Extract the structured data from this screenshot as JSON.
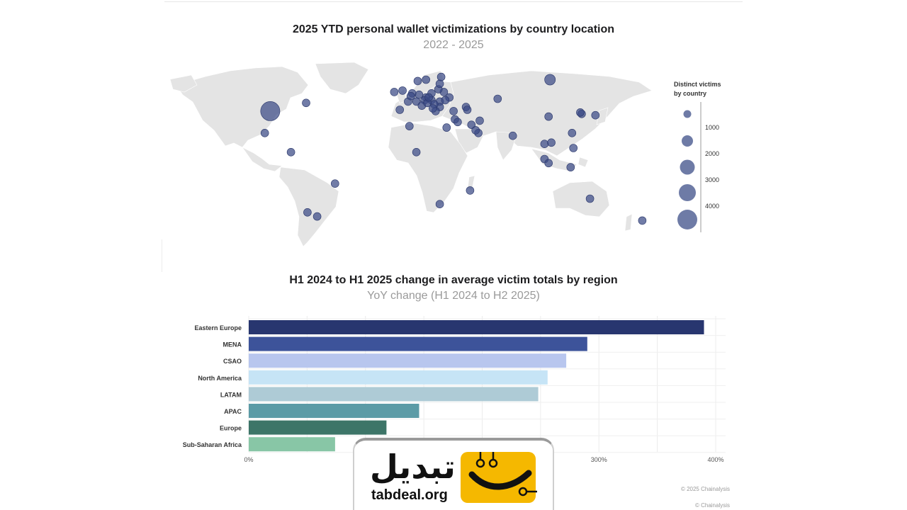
{
  "chart_data": [
    {
      "type": "scatter",
      "title": "2025 YTD personal wallet victimizations by country location",
      "subtitle": "2022 - 2025",
      "legend": {
        "title_line1": "Distinct victims",
        "title_line2": "by country",
        "ticks": [
          "1000",
          "2000",
          "3000",
          "4000"
        ],
        "placement": "right"
      },
      "points": [
        {
          "lon": -98,
          "lat": 39,
          "v": 3500
        },
        {
          "lon": -72,
          "lat": 45,
          "v": 300
        },
        {
          "lon": -102,
          "lat": 23,
          "v": 350
        },
        {
          "lon": -83,
          "lat": 9,
          "v": 300
        },
        {
          "lon": -51,
          "lat": -14,
          "v": 300
        },
        {
          "lon": -71,
          "lat": -35,
          "v": 300
        },
        {
          "lon": -64,
          "lat": -38,
          "v": 300
        },
        {
          "lon": 105,
          "lat": 62,
          "v": 1100
        },
        {
          "lon": 104,
          "lat": 35,
          "v": 250
        },
        {
          "lon": 138,
          "lat": 36,
          "v": 300
        },
        {
          "lon": 128,
          "lat": 37,
          "v": 300
        },
        {
          "lon": 127,
          "lat": 38,
          "v": 350
        },
        {
          "lon": 78,
          "lat": 21,
          "v": 300
        },
        {
          "lon": 121,
          "lat": 23,
          "v": 250
        },
        {
          "lon": 101,
          "lat": 15,
          "v": 300
        },
        {
          "lon": 106,
          "lat": 16,
          "v": 300
        },
        {
          "lon": 122,
          "lat": 12,
          "v": 300
        },
        {
          "lon": 101,
          "lat": 4,
          "v": 300
        },
        {
          "lon": 104,
          "lat": 1,
          "v": 300
        },
        {
          "lon": 120,
          "lat": -2,
          "v": 300
        },
        {
          "lon": 134,
          "lat": -25,
          "v": 300
        },
        {
          "lon": 172,
          "lat": -41,
          "v": 300
        },
        {
          "lon": 53,
          "lat": 23,
          "v": 300
        },
        {
          "lon": 48,
          "lat": 29,
          "v": 250
        },
        {
          "lon": 51,
          "lat": 25,
          "v": 250
        },
        {
          "lon": 54,
          "lat": 32,
          "v": 250
        },
        {
          "lon": 35,
          "lat": 39,
          "v": 300
        },
        {
          "lon": 30,
          "lat": 27,
          "v": 300
        },
        {
          "lon": 3,
          "lat": 28,
          "v": 300
        },
        {
          "lon": 8,
          "lat": 9,
          "v": 300
        },
        {
          "lon": 25,
          "lat": -29,
          "v": 300
        },
        {
          "lon": 47,
          "lat": -19,
          "v": 300
        },
        {
          "lon": 36,
          "lat": 33,
          "v": 300
        },
        {
          "lon": 38,
          "lat": 31,
          "v": 300
        },
        {
          "lon": 67,
          "lat": 48,
          "v": 300
        },
        {
          "lon": 44,
          "lat": 42,
          "v": 300
        },
        {
          "lon": 45,
          "lat": 40,
          "v": 300
        },
        {
          "lon": 32,
          "lat": 49,
          "v": 350
        },
        {
          "lon": 28,
          "lat": 53,
          "v": 300
        },
        {
          "lon": 24,
          "lat": 55,
          "v": 300
        },
        {
          "lon": 25,
          "lat": 59,
          "v": 300
        },
        {
          "lon": 26,
          "lat": 64,
          "v": 300
        },
        {
          "lon": 15,
          "lat": 62,
          "v": 300
        },
        {
          "lon": 9,
          "lat": 61,
          "v": 300
        },
        {
          "lon": -2,
          "lat": 54,
          "v": 300
        },
        {
          "lon": -8,
          "lat": 53,
          "v": 300
        },
        {
          "lon": 2,
          "lat": 46,
          "v": 300
        },
        {
          "lon": 10,
          "lat": 51,
          "v": 300
        },
        {
          "lon": 19,
          "lat": 52,
          "v": 300
        },
        {
          "lon": 15,
          "lat": 49,
          "v": 300
        },
        {
          "lon": 14,
          "lat": 47,
          "v": 300
        },
        {
          "lon": 8,
          "lat": 46,
          "v": 300
        },
        {
          "lon": 19,
          "lat": 47,
          "v": 300
        },
        {
          "lon": 25,
          "lat": 46,
          "v": 300
        },
        {
          "lon": 25,
          "lat": 42,
          "v": 300
        },
        {
          "lon": 21,
          "lat": 44,
          "v": 300
        },
        {
          "lon": 12,
          "lat": 43,
          "v": 300
        },
        {
          "lon": -4,
          "lat": 40,
          "v": 300
        },
        {
          "lon": 22,
          "lat": 39,
          "v": 300
        },
        {
          "lon": 5,
          "lat": 52,
          "v": 300
        },
        {
          "lon": 4,
          "lat": 50,
          "v": 300
        },
        {
          "lon": 16,
          "lat": 45,
          "v": 300
        },
        {
          "lon": 29,
          "lat": 47,
          "v": 300
        },
        {
          "lon": 17,
          "lat": 49,
          "v": 300
        },
        {
          "lon": 20,
          "lat": 41,
          "v": 300
        }
      ]
    },
    {
      "type": "bar",
      "orientation": "horizontal",
      "title": "H1 2024 to H1 2025 change in average victim totals by region",
      "subtitle": "YoY change (H1 2024 to H2 2025)",
      "categories": [
        "Eastern Europe",
        "MENA",
        "CSAO",
        "North America",
        "LATAM",
        "APAC",
        "Europe",
        "Sub-Saharan Africa"
      ],
      "values": [
        390,
        290,
        272,
        256,
        248,
        146,
        118,
        74
      ],
      "colors": [
        "#28366f",
        "#3d539a",
        "#b8c6ee",
        "#c6e4f6",
        "#aecbd6",
        "#5c9ba6",
        "#3d7568",
        "#88c6a6"
      ],
      "xlim": [
        0,
        400
      ],
      "xticks": [
        "0%",
        "300%",
        "400%"
      ],
      "grid": true
    }
  ],
  "credits": [
    "© 2025 Chainalysis",
    "© Chainalysis"
  ],
  "watermark": {
    "arabic": "تبدیل",
    "url": "tabdeal.org"
  }
}
